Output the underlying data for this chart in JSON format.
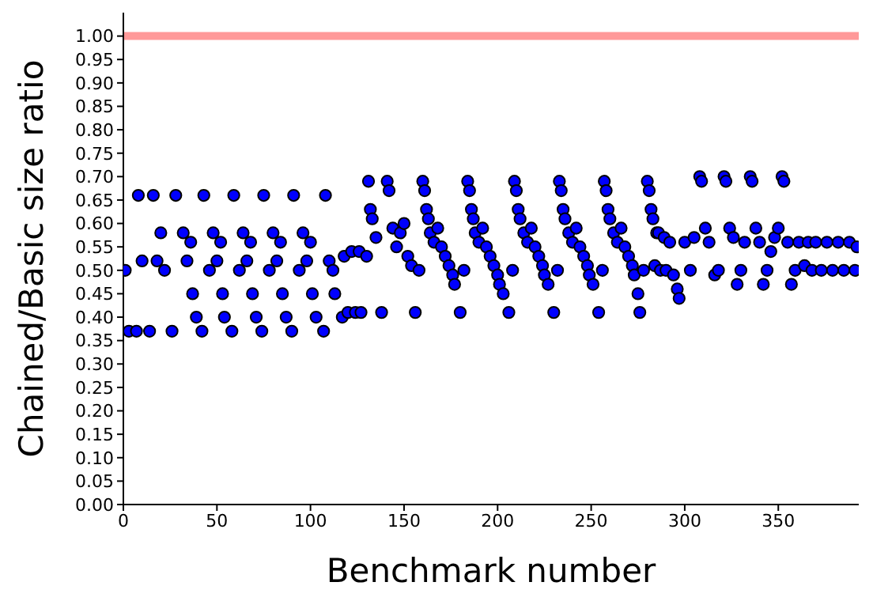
{
  "chart_data": {
    "type": "scatter",
    "xlabel": "Benchmark number",
    "ylabel": "Chained/Basic size ratio",
    "xlim": [
      0,
      393
    ],
    "xticks": [
      0,
      50,
      100,
      150,
      200,
      250,
      300,
      350
    ],
    "ylim": [
      0,
      1.05
    ],
    "yticks": [
      {
        "value": 0,
        "label": "0.00"
      },
      {
        "value": 0.05,
        "label": "0.05"
      },
      {
        "value": 0.1,
        "label": "0.10"
      },
      {
        "value": 0.15,
        "label": "0.15"
      },
      {
        "value": 0.2,
        "label": "0.20"
      },
      {
        "value": 0.25,
        "label": "0.25"
      },
      {
        "value": 0.3,
        "label": "0.30"
      },
      {
        "value": 0.35,
        "label": "0.35"
      },
      {
        "value": 0.4,
        "label": "0.40"
      },
      {
        "value": 0.45,
        "label": "0.45"
      },
      {
        "value": 0.5,
        "label": "0.50"
      },
      {
        "value": 0.55,
        "label": "0.55"
      },
      {
        "value": 0.6,
        "label": "0.60"
      },
      {
        "value": 0.65,
        "label": "0.65"
      },
      {
        "value": 0.7,
        "label": "0.70"
      },
      {
        "value": 0.75,
        "label": "0.75"
      },
      {
        "value": 0.8,
        "label": "0.80"
      },
      {
        "value": 0.85,
        "label": "0.85"
      },
      {
        "value": 0.9,
        "label": "0.90"
      },
      {
        "value": 0.95,
        "label": "0.95"
      },
      {
        "value": 1,
        "label": "1.00"
      }
    ],
    "grid": false,
    "marker": "circle",
    "ref_lines": [
      {
        "axis": "y",
        "value": 1.0,
        "color": "#ff9999"
      }
    ],
    "series": [
      {
        "color": "#0000ff",
        "x": [
          1,
          3,
          7,
          8,
          10,
          14,
          16,
          18,
          20,
          22,
          26,
          28,
          32,
          34,
          36,
          37,
          39,
          42,
          43,
          46,
          48,
          50,
          52,
          53,
          54,
          58,
          59,
          62,
          64,
          66,
          68,
          69,
          71,
          74,
          75,
          78,
          80,
          82,
          84,
          85,
          87,
          90,
          91,
          94,
          96,
          98,
          100,
          101,
          103,
          107,
          108,
          110,
          112,
          113,
          117,
          118,
          120,
          122,
          124,
          126,
          127,
          130,
          131,
          132,
          133,
          135,
          138,
          141,
          142,
          144,
          146,
          148,
          150,
          152,
          154,
          156,
          158,
          160,
          161,
          162,
          163,
          164,
          166,
          168,
          170,
          172,
          174,
          176,
          177,
          180,
          182,
          184,
          185,
          186,
          187,
          188,
          190,
          192,
          194,
          196,
          198,
          200,
          201,
          203,
          206,
          208,
          209,
          210,
          211,
          212,
          214,
          216,
          218,
          220,
          222,
          224,
          225,
          227,
          230,
          232,
          233,
          234,
          235,
          236,
          238,
          240,
          242,
          244,
          246,
          248,
          249,
          251,
          254,
          256,
          257,
          258,
          259,
          260,
          262,
          264,
          266,
          268,
          270,
          272,
          273,
          275,
          276,
          278,
          280,
          281,
          282,
          283,
          284,
          285,
          286,
          287,
          289,
          290,
          292,
          294,
          296,
          297,
          300,
          303,
          305,
          308,
          309,
          311,
          313,
          316,
          318,
          321,
          322,
          324,
          326,
          328,
          330,
          332,
          335,
          336,
          338,
          340,
          342,
          344,
          346,
          348,
          350,
          352,
          353,
          355,
          357,
          359,
          361,
          364,
          366,
          368,
          370,
          373,
          376,
          379,
          382,
          385,
          388,
          391,
          392
        ],
        "values": [
          0.5,
          0.37,
          0.37,
          0.66,
          0.52,
          0.37,
          0.66,
          0.52,
          0.58,
          0.5,
          0.37,
          0.66,
          0.58,
          0.52,
          0.56,
          0.45,
          0.4,
          0.37,
          0.66,
          0.5,
          0.58,
          0.52,
          0.56,
          0.45,
          0.4,
          0.37,
          0.66,
          0.5,
          0.58,
          0.52,
          0.56,
          0.45,
          0.4,
          0.37,
          0.66,
          0.5,
          0.58,
          0.52,
          0.56,
          0.45,
          0.4,
          0.37,
          0.66,
          0.5,
          0.58,
          0.52,
          0.56,
          0.45,
          0.4,
          0.37,
          0.66,
          0.52,
          0.5,
          0.45,
          0.4,
          0.53,
          0.41,
          0.54,
          0.41,
          0.54,
          0.41,
          0.53,
          0.69,
          0.63,
          0.61,
          0.57,
          0.41,
          0.69,
          0.67,
          0.59,
          0.55,
          0.58,
          0.6,
          0.53,
          0.51,
          0.41,
          0.5,
          0.69,
          0.67,
          0.63,
          0.61,
          0.58,
          0.56,
          0.59,
          0.55,
          0.53,
          0.51,
          0.49,
          0.47,
          0.41,
          0.5,
          0.69,
          0.67,
          0.63,
          0.61,
          0.58,
          0.56,
          0.59,
          0.55,
          0.53,
          0.51,
          0.49,
          0.47,
          0.45,
          0.41,
          0.5,
          0.69,
          0.67,
          0.63,
          0.61,
          0.58,
          0.56,
          0.59,
          0.55,
          0.53,
          0.51,
          0.49,
          0.47,
          0.41,
          0.5,
          0.69,
          0.67,
          0.63,
          0.61,
          0.58,
          0.56,
          0.59,
          0.55,
          0.53,
          0.51,
          0.49,
          0.47,
          0.41,
          0.5,
          0.69,
          0.67,
          0.63,
          0.61,
          0.58,
          0.56,
          0.59,
          0.55,
          0.53,
          0.51,
          0.49,
          0.45,
          0.41,
          0.5,
          0.69,
          0.67,
          0.63,
          0.61,
          0.51,
          0.58,
          0.58,
          0.5,
          0.57,
          0.5,
          0.56,
          0.49,
          0.46,
          0.44,
          0.56,
          0.5,
          0.57,
          0.7,
          0.69,
          0.59,
          0.56,
          0.49,
          0.5,
          0.7,
          0.69,
          0.59,
          0.57,
          0.47,
          0.5,
          0.56,
          0.7,
          0.69,
          0.59,
          0.56,
          0.47,
          0.5,
          0.54,
          0.57,
          0.59,
          0.7,
          0.69,
          0.56,
          0.47,
          0.5,
          0.56,
          0.51,
          0.56,
          0.5,
          0.56,
          0.5,
          0.56,
          0.5,
          0.56,
          0.5,
          0.56,
          0.5,
          0.55
        ]
      }
    ]
  }
}
